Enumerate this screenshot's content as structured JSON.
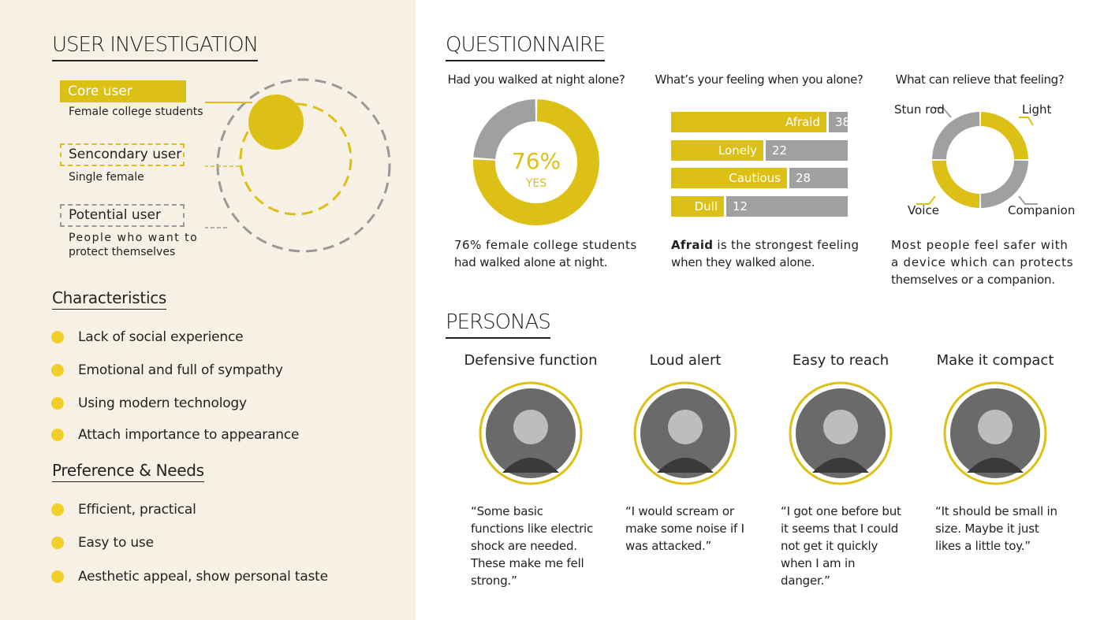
{
  "left": {
    "title": "USER INVESTIGATION",
    "core": {
      "label": "Core user",
      "desc": "Female college students"
    },
    "secondary": {
      "label": "Sencondary user",
      "desc": "Single female"
    },
    "potential": {
      "label": "Potential user",
      "desc1": "People who want to",
      "desc2": "protect themselves"
    },
    "characteristics": {
      "title": "Characteristics",
      "items": [
        "Lack of social experience",
        "Emotional and full of sympathy",
        "Using modern technology",
        "Attach importance to appearance"
      ]
    },
    "preferences": {
      "title": "Preference & Needs",
      "items": [
        "Efficient, practical",
        "Easy to use",
        "Aesthetic appeal, show personal taste"
      ]
    }
  },
  "questionnaire": {
    "title": "QUESTIONNAIRE",
    "q1": {
      "question": "Had you walked at night alone?",
      "percent_label": "76%",
      "yes_label": "YES",
      "value": 76,
      "caption1": "76% female college students",
      "caption2": "had walked alone at night."
    },
    "q2": {
      "question": "What’s your feeling when you alone?",
      "bars": [
        {
          "label": "Afraid",
          "value": "38"
        },
        {
          "label": "Lonely",
          "value": "22"
        },
        {
          "label": "Cautious",
          "value": "28"
        },
        {
          "label": "Dull",
          "value": "12"
        }
      ],
      "caption_bold": "Afraid",
      "caption_rest": " is the strongest feeling",
      "caption2": "when they walked alone."
    },
    "q3": {
      "question": "What can relieve that feeling?",
      "labels": {
        "stun": "Stun rod",
        "light": "Light",
        "voice": "Voice",
        "companion": "Companion"
      },
      "caption1": "Most people feel safer with",
      "caption2": "a device which can protects",
      "caption3": "themselves or a companion."
    }
  },
  "chart_data": [
    {
      "type": "pie",
      "title": "Had you walked at night alone?",
      "slices": [
        {
          "label": "YES",
          "value": 76
        },
        {
          "label": "",
          "value": 24
        }
      ]
    },
    {
      "type": "bar",
      "title": "What’s your feeling when you alone?",
      "categories": [
        "Afraid",
        "Lonely",
        "Cautious",
        "Dull"
      ],
      "values": [
        38,
        22,
        28,
        12
      ]
    },
    {
      "type": "pie",
      "title": "What can relieve that feeling?",
      "slices": [
        {
          "label": "Light",
          "value": 25
        },
        {
          "label": "Companion",
          "value": 25
        },
        {
          "label": "Voice",
          "value": 25
        },
        {
          "label": "Stun rod",
          "value": 25
        }
      ]
    }
  ],
  "personas": {
    "title": "PERSONAS",
    "items": [
      {
        "name": "Defensive function",
        "quote": "“Some basic functions like electric shock are needed. These make me fell strong.”"
      },
      {
        "name": "Loud alert",
        "quote": "“I would scream or make some noise if I was attacked.”"
      },
      {
        "name": "Easy to reach",
        "quote": "“I got one before but it seems that I could not get it quickly when I am in danger.”"
      },
      {
        "name": "Make it compact",
        "quote": "“It should be small in size. Maybe it just likes a little toy.”"
      }
    ]
  },
  "colors": {
    "yellow": "#dcc016",
    "gray": "#a0a0a0",
    "bullet": "#f1cf2b",
    "panel": "#f6f1e4"
  }
}
